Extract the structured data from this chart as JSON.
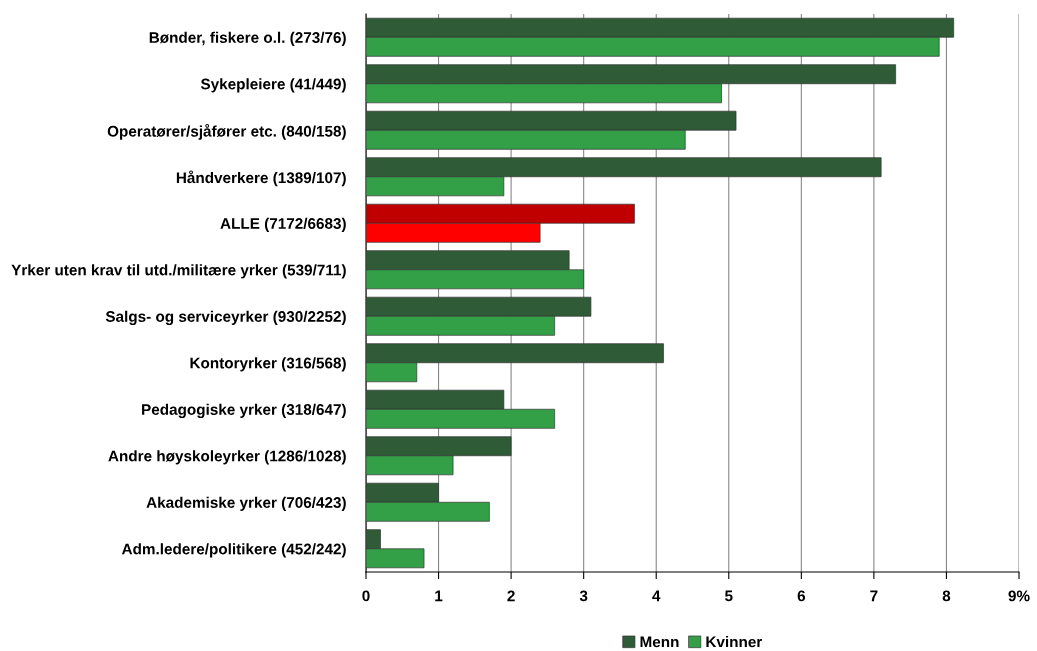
{
  "chart_data": {
    "type": "bar",
    "orientation": "horizontal",
    "categories": [
      "Bønder, fiskere o.l. (273/76)",
      "Sykepleiere (41/449)",
      "Operatører/sjåfører etc. (840/158)",
      "Håndverkere (1389/107)",
      "ALLE (7172/6683)",
      "Yrker uten krav til utd./militære yrker (539/711)",
      "Salgs- og serviceyrker (930/2252)",
      "Kontoryrker (316/568)",
      "Pedagogiske yrker (318/647)",
      "Andre høyskoleyrker (1286/1028)",
      "Akademiske yrker (706/423)",
      "Adm.ledere/politikere (452/242)"
    ],
    "series": [
      {
        "name": "Menn",
        "color": "#2f5b36",
        "colors": [
          "#2f5b36",
          "#2f5b36",
          "#2f5b36",
          "#2f5b36",
          "#c00000",
          "#2f5b36",
          "#2f5b36",
          "#2f5b36",
          "#2f5b36",
          "#2f5b36",
          "#2f5b36",
          "#2f5b36"
        ],
        "values": [
          8.1,
          7.3,
          5.1,
          7.1,
          3.7,
          2.8,
          3.1,
          4.1,
          1.9,
          2.0,
          1.0,
          0.2
        ]
      },
      {
        "name": "Kvinner",
        "color": "#33a048",
        "colors": [
          "#33a048",
          "#33a048",
          "#33a048",
          "#33a048",
          "#ff0000",
          "#33a048",
          "#33a048",
          "#33a048",
          "#33a048",
          "#33a048",
          "#33a048",
          "#33a048"
        ],
        "values": [
          7.9,
          4.9,
          4.4,
          1.9,
          2.4,
          3.0,
          2.6,
          0.7,
          2.6,
          1.2,
          1.7,
          0.8
        ]
      }
    ],
    "xlim": [
      0,
      9
    ],
    "xticks": [
      0,
      1,
      2,
      3,
      4,
      5,
      6,
      7,
      8,
      {
        "value": 9,
        "label": "9%"
      }
    ],
    "grid": "x",
    "legend": "bottom"
  }
}
